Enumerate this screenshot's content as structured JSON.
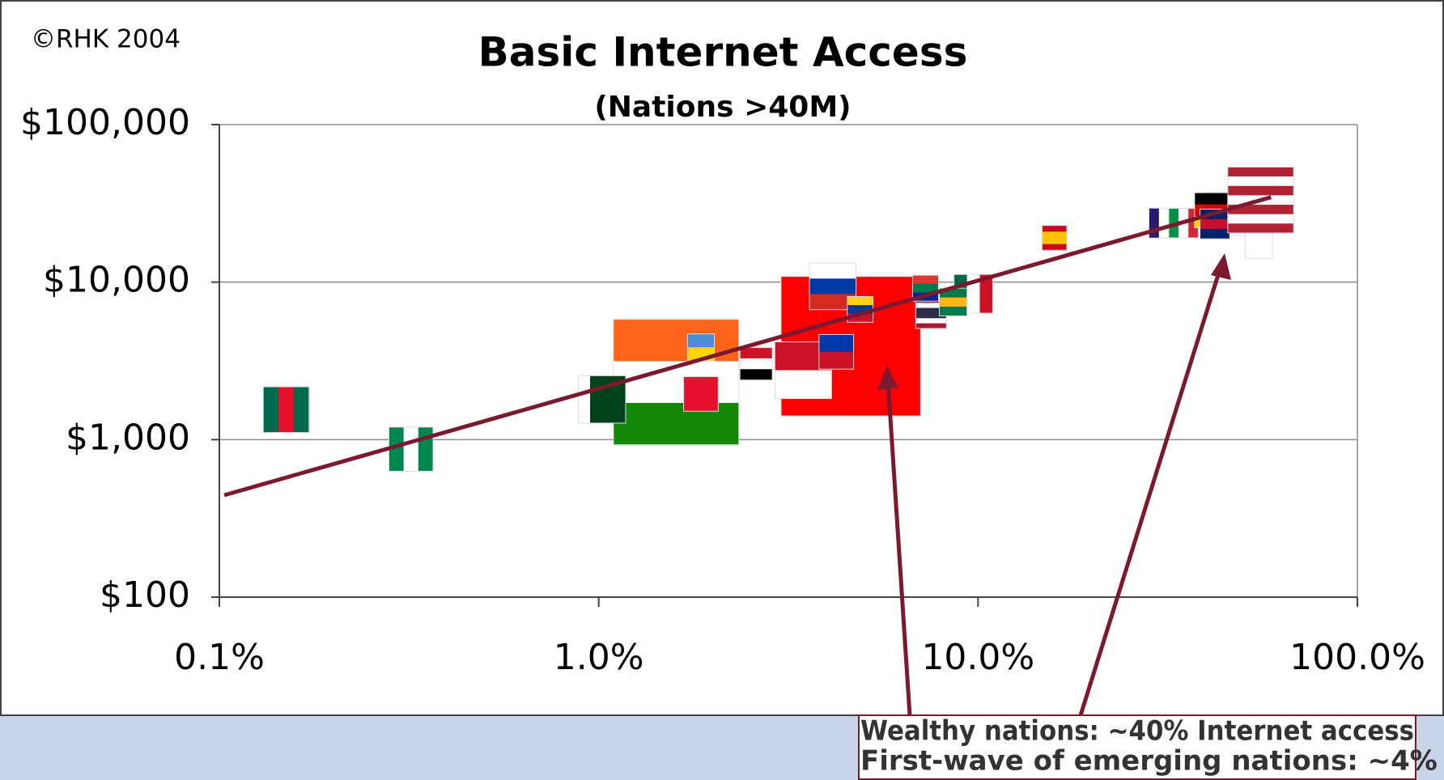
{
  "chart_data": {
    "type": "scatter",
    "title": "Basic Internet Access",
    "subtitle": "(Nations >40M)",
    "source": "©RHK 2004",
    "x_scale": "log",
    "y_scale": "log",
    "grid": true,
    "xlim": [
      0.1,
      100
    ],
    "xticks": [
      {
        "value": 0.1,
        "label": "0.1%"
      },
      {
        "value": 1,
        "label": "1.0%"
      },
      {
        "value": 10,
        "label": "10.0%"
      },
      {
        "value": 100,
        "label": "100.0%"
      }
    ],
    "ylim": [
      100,
      100000
    ],
    "yticks": [
      {
        "value": 100,
        "label": "$100"
      },
      {
        "value": 1000,
        "label": "$1,000"
      },
      {
        "value": 10000,
        "label": "$10,000"
      },
      {
        "value": 100000,
        "label": "$100,000"
      }
    ],
    "x": [
      4.62,
      1.6,
      0.15,
      0.32,
      1.02,
      3.46,
      4.14,
      9.72,
      7.52,
      8.6,
      1.86,
      1.86,
      2.6,
      4.23,
      4.89,
      7.27,
      15.9,
      30.9,
      34.8,
      45.5,
      41.4,
      42.1,
      55.0,
      55.6
    ],
    "y": [
      3920,
      2320,
      1550,
      870,
      1800,
      2760,
      9400,
      8430,
      6360,
      7470,
      1950,
      3860,
      3030,
      3610,
      6710,
      9150,
      19100,
      23700,
      23700,
      27100,
      28600,
      23400,
      17200,
      33200
    ],
    "sizes": [
      1300,
      1050,
      140,
      130,
      150,
      215,
      145,
      100,
      63,
      51,
      80,
      48,
      70,
      80,
      44,
      45,
      41,
      60,
      58,
      127,
      82,
      59,
      48,
      290
    ],
    "flag_colors": [
      [
        "#ff0000"
      ],
      [
        "#ff6319",
        "#ffffff",
        "#138808"
      ],
      [
        "#006a4e",
        "#e8112d",
        "#006a4e"
      ],
      [
        "#008751",
        "#ffffff",
        "#008751"
      ],
      [
        "#ffffff",
        "#01411c",
        "#01411c",
        "#01411c"
      ],
      [
        "#ce1126",
        "#ffffff"
      ],
      [
        "#ffffff",
        "#0039a6",
        "#d52b1e"
      ],
      [
        "#006847",
        "#ffffff",
        "#ce1126"
      ],
      [
        "#a51931",
        "#ffffff",
        "#2d2a4a",
        "#2d2a4a",
        "#ffffff",
        "#a51931"
      ],
      [
        "#007a4d",
        "#ffb612",
        "#007a4d"
      ],
      [
        "#e8112d"
      ],
      [
        "#4d8fd6",
        "#ffd500"
      ],
      [
        "#ce1126",
        "#ffffff",
        "#000000"
      ],
      [
        "#0038a8",
        "#ce1126"
      ],
      [
        "#fcd116",
        "#003893",
        "#ce1126"
      ],
      [
        "#de3831",
        "#007a4d",
        "#002395"
      ],
      [
        "#c60b1e",
        "#ffc400",
        "#ffc400",
        "#c60b1e"
      ],
      [
        "#2d1a6e",
        "#ffffff",
        "#ed2939"
      ],
      [
        "#009246",
        "#ffffff",
        "#ce2b37"
      ],
      [
        "#ffffff"
      ],
      [
        "#000000",
        "#dd0000",
        "#ffce00"
      ],
      [
        "#012169",
        "#c8102e",
        "#012169"
      ],
      [
        "#ffffff"
      ],
      [
        "#b22234",
        "#ffffff",
        "#b22234",
        "#ffffff",
        "#b22234",
        "#ffffff",
        "#b22234"
      ]
    ],
    "flag_stripes": [
      "h",
      "h",
      "v",
      "v",
      "v",
      "h",
      "h",
      "v",
      "h",
      "h",
      "h",
      "h",
      "h",
      "h",
      "h",
      "h",
      "h",
      "v",
      "v",
      "h",
      "h",
      "h",
      "h",
      "h"
    ],
    "trendline": {
      "x": [
        0.103,
        59.2
      ],
      "y": [
        444,
        34600
      ],
      "color": "#7b1a2e"
    },
    "annotations": [
      "Wealthy nations: ~40% Internet access",
      "First-wave of emerging nations: ~4%"
    ]
  }
}
